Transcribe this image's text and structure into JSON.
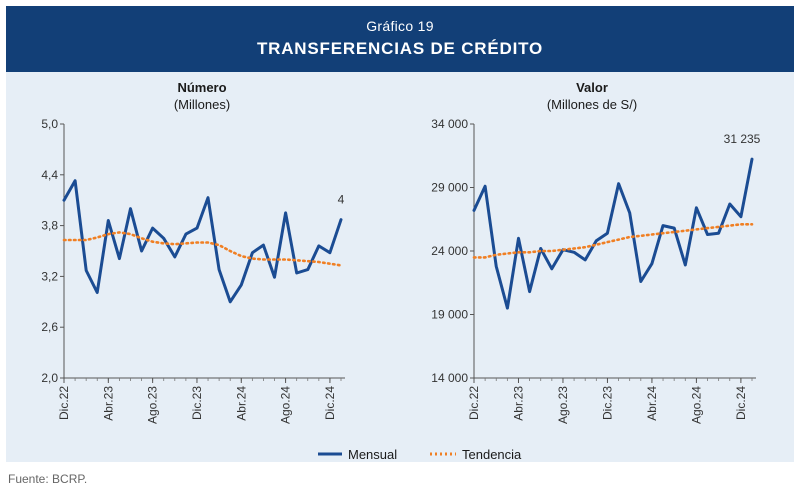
{
  "header": {
    "subtitle": "Gráfico 19",
    "title": "TRANSFERENCIAS DE CRÉDITO"
  },
  "source": "Fuente: BCRP.",
  "legend": {
    "monthly": "Mensual",
    "trend": "Tendencia"
  },
  "colors": {
    "monthly": "#1b4c93",
    "trend": "#f07f23",
    "header": "#123f77",
    "panel": "#e6eef6"
  },
  "chart_data": [
    {
      "type": "line",
      "title": "Número",
      "ylabel": "(Millones)",
      "ylim": [
        2.0,
        5.0
      ],
      "yticks": [
        "5,0",
        "4,4",
        "3,8",
        "3,2",
        "2,6",
        "2,0"
      ],
      "ytick_values": [
        5.0,
        4.4,
        3.8,
        3.2,
        2.6,
        2.0
      ],
      "xticks": [
        "Dic.22",
        "Abr.23",
        "Ago.23",
        "Dic.23",
        "Abr.24",
        "Ago.24",
        "Dic.24"
      ],
      "xtick_index": [
        0,
        4,
        8,
        12,
        16,
        20,
        24
      ],
      "end_label": "4",
      "series": [
        {
          "name": "Mensual",
          "values": [
            4.1,
            4.33,
            3.27,
            3.01,
            3.86,
            3.41,
            4.0,
            3.5,
            3.77,
            3.65,
            3.43,
            3.7,
            3.77,
            4.13,
            3.28,
            2.9,
            3.1,
            3.48,
            3.57,
            3.19,
            3.95,
            3.24,
            3.28,
            3.56,
            3.48,
            3.87
          ]
        },
        {
          "name": "Tendencia",
          "values": [
            3.63,
            3.63,
            3.63,
            3.66,
            3.7,
            3.72,
            3.7,
            3.65,
            3.61,
            3.59,
            3.58,
            3.59,
            3.6,
            3.6,
            3.57,
            3.5,
            3.44,
            3.41,
            3.4,
            3.4,
            3.4,
            3.39,
            3.38,
            3.37,
            3.35,
            3.33
          ]
        }
      ]
    },
    {
      "type": "line",
      "title": "Valor",
      "ylabel": "(Millones de S/)",
      "ylim": [
        14000,
        34000
      ],
      "yticks": [
        "34 000",
        "29 000",
        "24 000",
        "19 000",
        "14 000"
      ],
      "ytick_values": [
        34000,
        29000,
        24000,
        19000,
        14000
      ],
      "xticks": [
        "Dic.22",
        "Abr.23",
        "Ago.23",
        "Dic.23",
        "Abr.24",
        "Ago.24",
        "Dic.24"
      ],
      "xtick_index": [
        0,
        4,
        8,
        12,
        16,
        20,
        24
      ],
      "end_label": "31 235",
      "series": [
        {
          "name": "Mensual",
          "values": [
            27200,
            29100,
            22800,
            19500,
            25000,
            20800,
            24200,
            22600,
            24100,
            23900,
            23300,
            24800,
            25400,
            29300,
            27000,
            21600,
            23000,
            26000,
            25800,
            22900,
            27400,
            25300,
            25400,
            27700,
            26700,
            31235
          ]
        },
        {
          "name": "Tendencia",
          "values": [
            23500,
            23500,
            23700,
            23800,
            23900,
            23900,
            24000,
            24000,
            24100,
            24200,
            24300,
            24500,
            24700,
            24900,
            25100,
            25200,
            25300,
            25400,
            25500,
            25600,
            25700,
            25800,
            25900,
            26000,
            26100,
            26100
          ]
        }
      ]
    }
  ]
}
